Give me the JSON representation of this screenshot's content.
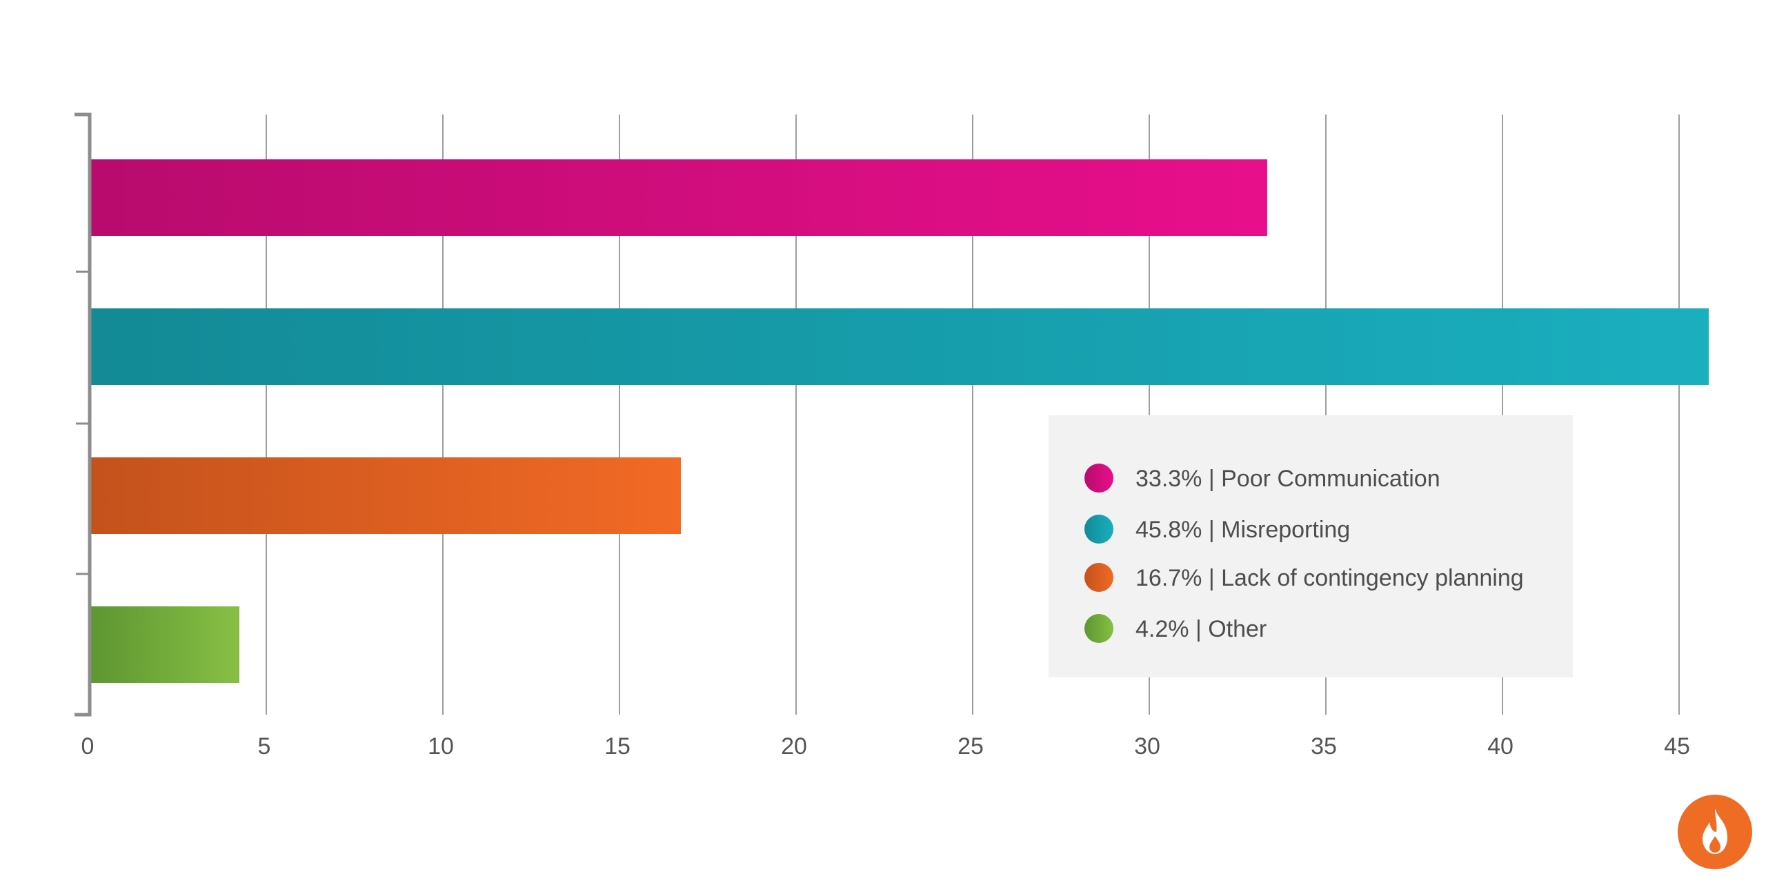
{
  "chart_data": {
    "type": "bar",
    "orientation": "horizontal",
    "title": "",
    "xlabel": "",
    "ylabel": "",
    "xlim": [
      0,
      45
    ],
    "xticks": [
      "0",
      "5",
      "10",
      "15",
      "20",
      "25",
      "30",
      "35",
      "40",
      "45"
    ],
    "grid": true,
    "legend_position": "center-right",
    "series": [
      {
        "value": 33.3,
        "label": "Poor Communication",
        "percent": "33.3%",
        "color_start": "#b80b6d",
        "color_end": "#e80f8b"
      },
      {
        "value": 45.8,
        "label": "Misreporting",
        "percent": "45.8%",
        "color_start": "#138a96",
        "color_end": "#1aafbf"
      },
      {
        "value": 16.7,
        "label": "Lack of contingency planning",
        "percent": "16.7%",
        "color_start": "#c4521c",
        "color_end": "#f26a25"
      },
      {
        "value": 4.2,
        "label": "Other",
        "percent": "4.2%",
        "color_start": "#5e9631",
        "color_end": "#87bf45"
      }
    ],
    "legend_separator": "|"
  },
  "logo": {
    "icon": "flame-icon",
    "color": "#ee6c24"
  }
}
